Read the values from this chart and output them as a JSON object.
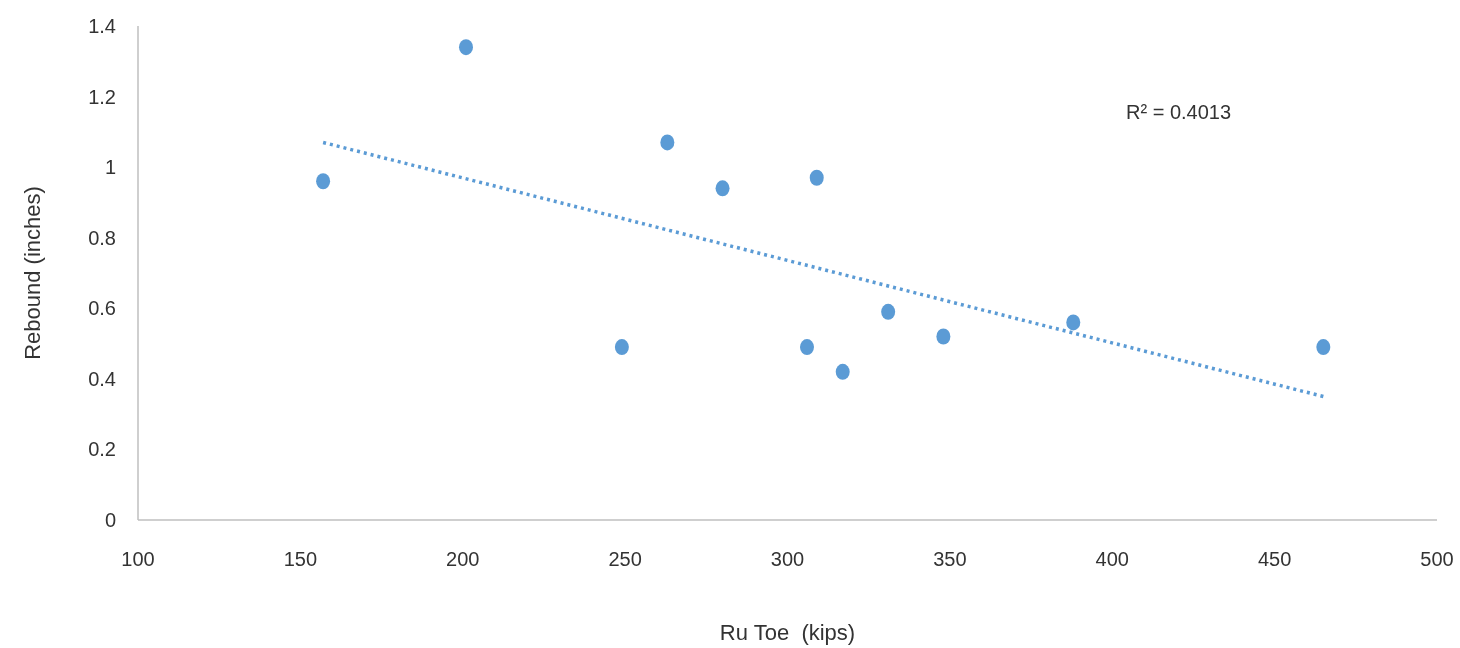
{
  "chart_data": {
    "type": "scatter",
    "xlabel": "Ru Toe  (kips)",
    "ylabel": "Rebound (inches)",
    "annotations": [
      "R² = 0.4013"
    ],
    "xlim": [
      100,
      500
    ],
    "xticks": [
      100,
      150,
      200,
      250,
      300,
      350,
      400,
      450,
      500
    ],
    "ylim": [
      0,
      1.4
    ],
    "yticks": [
      0,
      0.2,
      0.4,
      0.6,
      0.8,
      1,
      1.2,
      1.4
    ],
    "grid": false,
    "series": [
      {
        "color": "#5b9bd5",
        "marker": "circle",
        "x": [
          157,
          201,
          249,
          263,
          280,
          306,
          309,
          317,
          331,
          348,
          388,
          465
        ],
        "values": [
          0.96,
          1.34,
          0.49,
          1.07,
          0.94,
          0.49,
          0.97,
          0.42,
          0.59,
          0.52,
          0.56,
          0.49
        ]
      },
      {
        "type": "line",
        "color": "#5b9bd5",
        "marker": "none",
        "line_style": "dotted",
        "x": [
          157,
          465
        ],
        "values": [
          1.07,
          0.35
        ]
      }
    ]
  }
}
